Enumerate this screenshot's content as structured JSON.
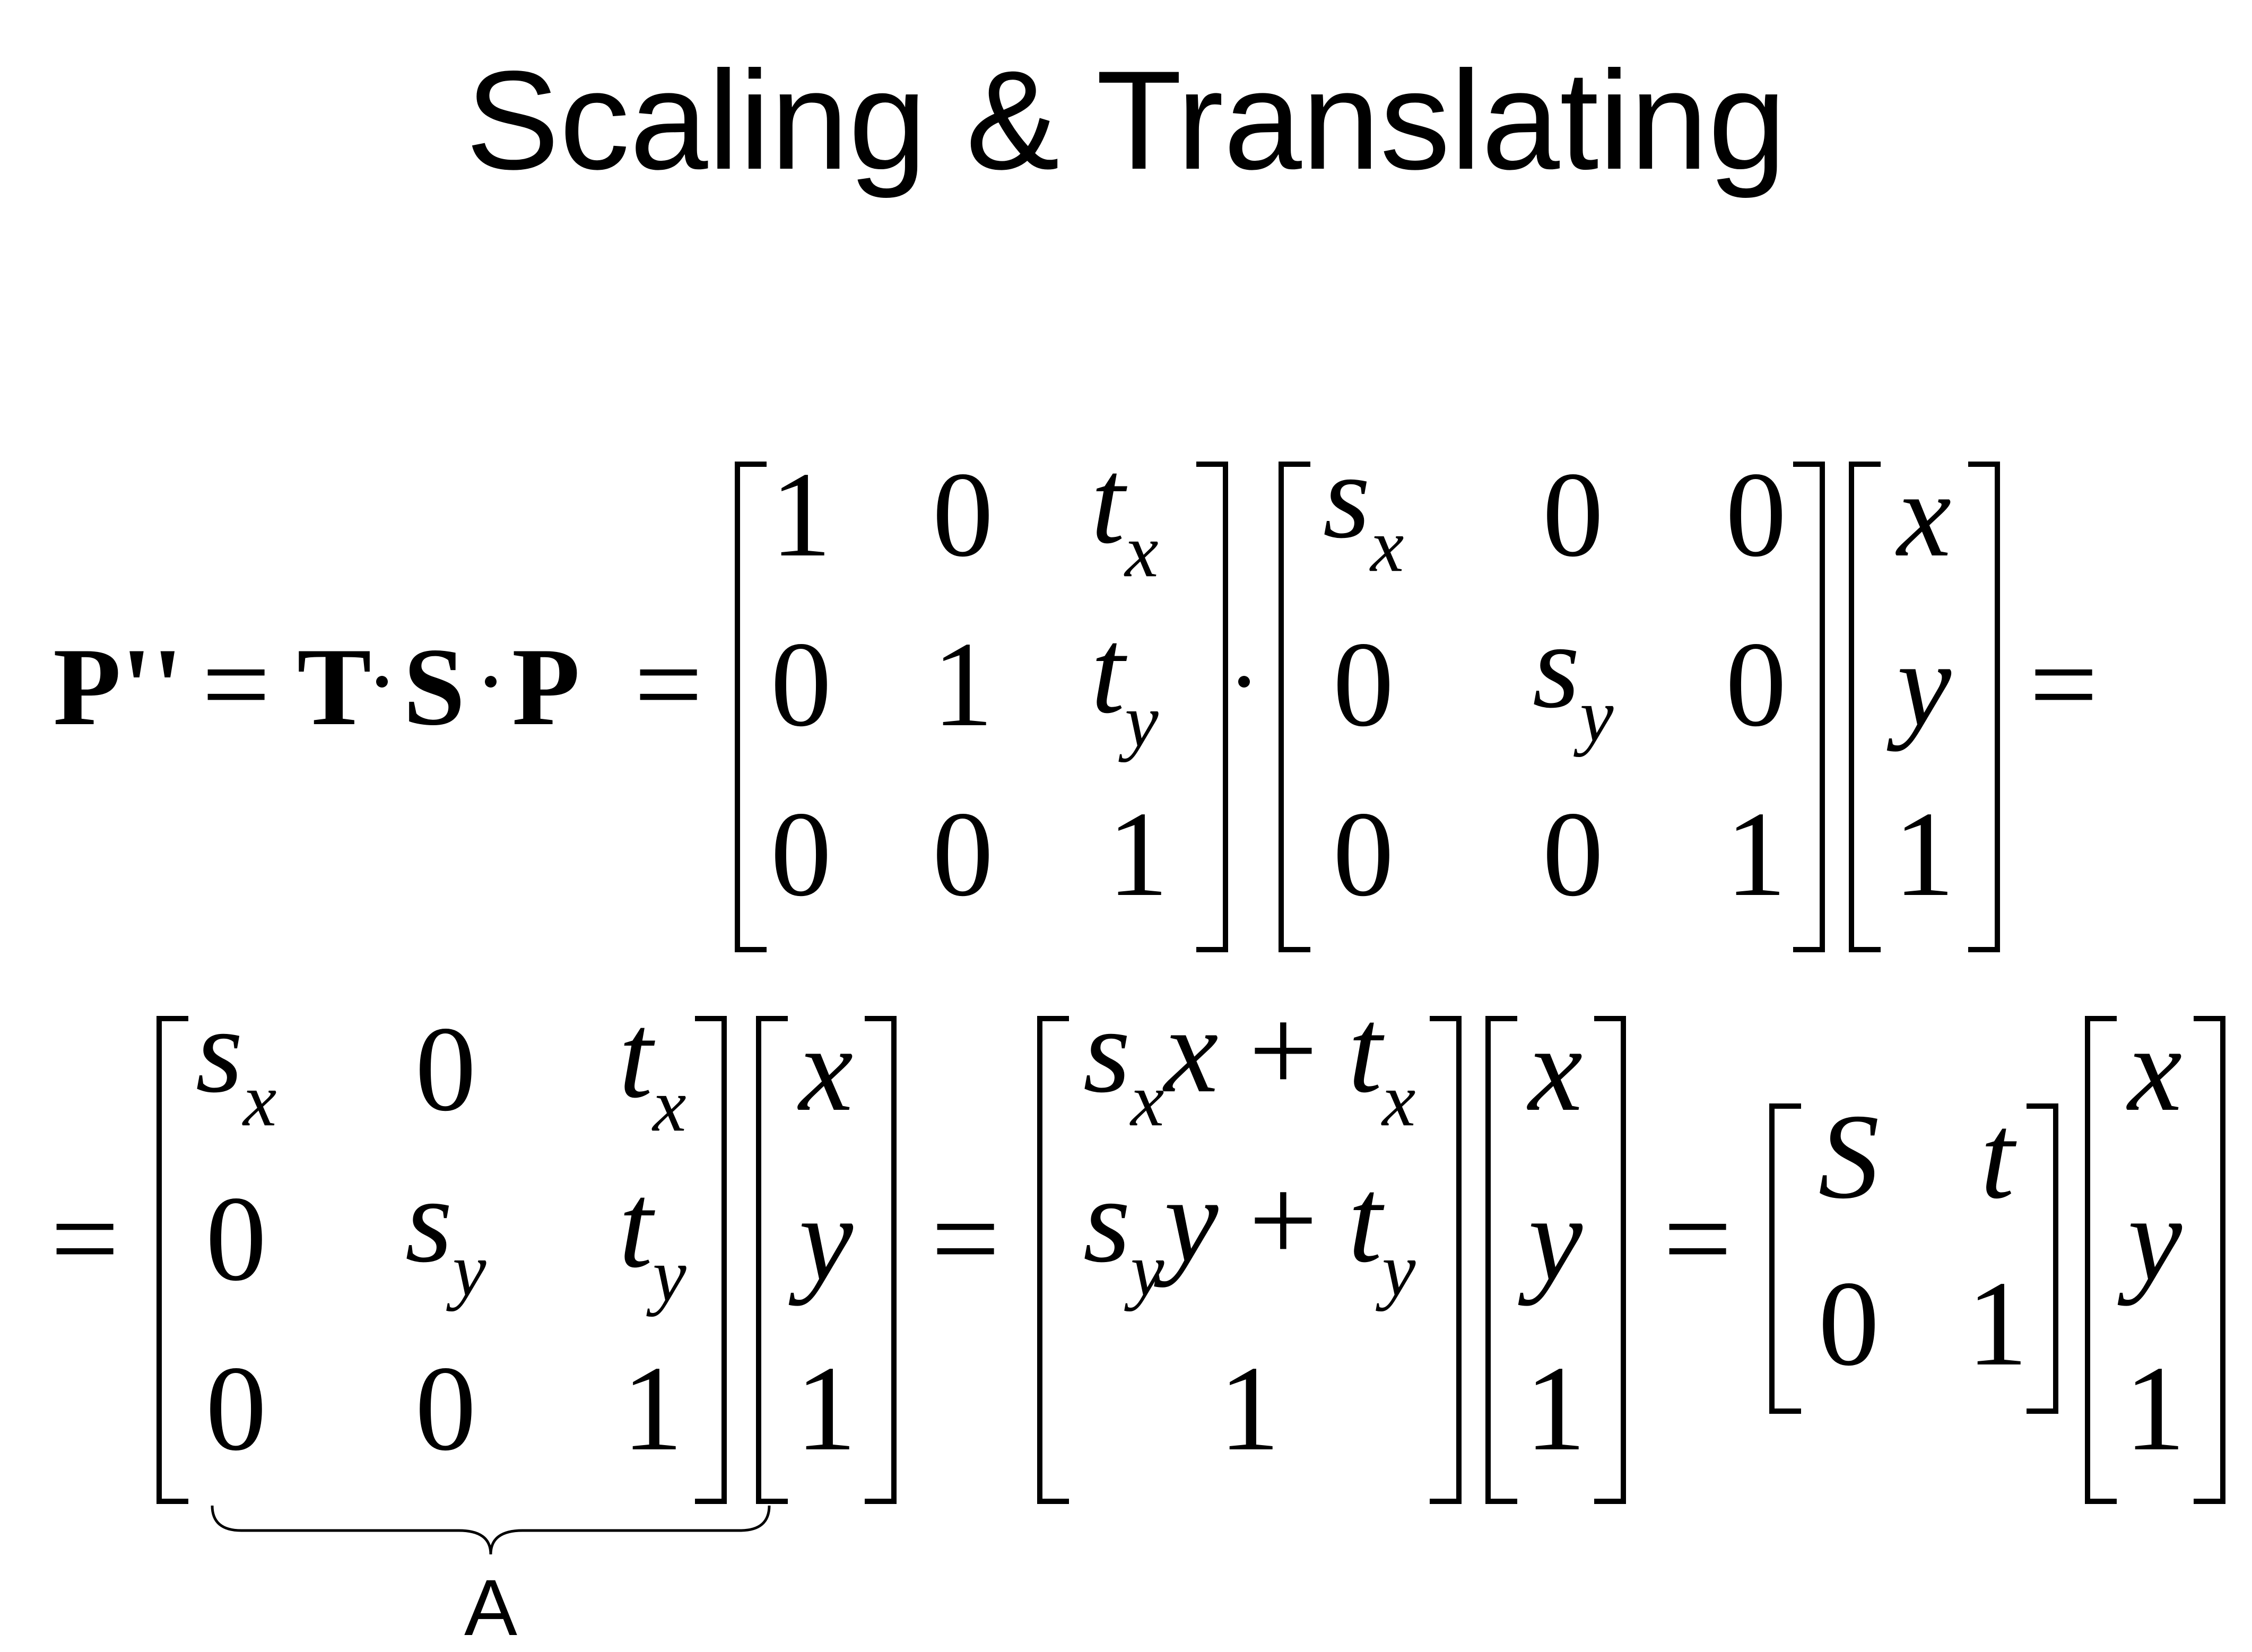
{
  "title": "Scaling & Translating",
  "line1": {
    "lhs": "P''",
    "eq1": "=",
    "T": "T",
    "S": "S",
    "P": "P",
    "eq2": "=",
    "eq_end": "=",
    "matrix_T": [
      [
        "1",
        "0",
        "t",
        "x"
      ],
      [
        "0",
        "1",
        "t",
        "y"
      ],
      [
        "0",
        "0",
        "1",
        ""
      ]
    ],
    "matrix_S": [
      [
        "s",
        "x",
        "0",
        "",
        "0",
        ""
      ],
      [
        "0",
        "",
        "s",
        "y",
        "0",
        ""
      ],
      [
        "0",
        "",
        "0",
        "",
        "1",
        ""
      ]
    ],
    "vec": [
      "x",
      "y",
      "1"
    ]
  },
  "line2": {
    "eq_start": "=",
    "eq_a": "=",
    "eq_b": "=",
    "matrix_A": [
      [
        "s",
        "x",
        "0",
        "",
        "t",
        "x"
      ],
      [
        "0",
        "",
        "s",
        "y",
        "t",
        "y"
      ],
      [
        "0",
        "",
        "0",
        "",
        "1",
        ""
      ]
    ],
    "vec1": [
      "x",
      "y",
      "1"
    ],
    "result": [
      {
        "s": "s",
        "sub": "x",
        "var": "x",
        "plus": "+",
        "t": "t",
        "tsub": "x"
      },
      {
        "s": "s",
        "sub": "y",
        "var": "y",
        "plus": "+",
        "t": "t",
        "tsub": "y"
      },
      {
        "one": "1"
      }
    ],
    "vec2": [
      "x",
      "y",
      "1"
    ],
    "block": [
      [
        "S",
        "t"
      ],
      [
        "0",
        "1"
      ]
    ],
    "vec3": [
      "x",
      "y",
      "1"
    ],
    "brace_label": "A"
  }
}
